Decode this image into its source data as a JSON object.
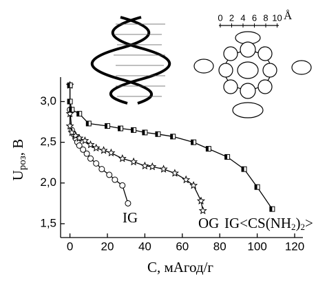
{
  "chart_data": {
    "type": "scatter-line",
    "x_label": "C, мАгод/г",
    "y_label": [
      "U",
      "роз",
      ", В"
    ],
    "xlim": [
      -5,
      120
    ],
    "ylim": [
      1.33,
      3.3
    ],
    "xticks": [
      0,
      20,
      40,
      60,
      80,
      100,
      120
    ],
    "yticks": [
      {
        "value": 1.5,
        "label": "1,5"
      },
      {
        "value": 2.0,
        "label": "2,0"
      },
      {
        "value": 2.5,
        "label": "2,5"
      },
      {
        "value": 3.0,
        "label": "3,0"
      }
    ],
    "series": [
      {
        "name": "IG",
        "marker": "circle",
        "color": "#000000",
        "x": [
          0,
          1,
          2,
          3,
          4,
          5,
          7,
          9,
          11,
          14,
          17,
          21,
          24,
          28,
          31
        ],
        "values": [
          2.9,
          2.65,
          2.6,
          2.55,
          2.5,
          2.46,
          2.41,
          2.36,
          2.3,
          2.24,
          2.17,
          2.1,
          2.04,
          1.97,
          1.75
        ]
      },
      {
        "name": "OG",
        "marker": "star",
        "color": "#000000",
        "x": [
          0,
          0,
          0,
          1,
          3,
          5,
          8,
          11,
          14,
          18,
          22,
          28,
          34,
          40,
          44,
          50,
          56,
          62,
          66,
          70,
          71
        ],
        "values": [
          3.2,
          2.85,
          2.7,
          2.62,
          2.58,
          2.55,
          2.52,
          2.47,
          2.43,
          2.4,
          2.37,
          2.3,
          2.26,
          2.21,
          2.2,
          2.17,
          2.12,
          2.04,
          1.97,
          1.78,
          1.66
        ]
      },
      {
        "name": "IG<CS(NH2)2>",
        "marker": "square",
        "color": "#000000",
        "x": [
          0,
          0,
          1,
          5,
          10,
          20,
          27,
          34,
          40,
          47,
          55,
          66,
          74,
          84,
          93,
          100,
          108
        ],
        "values": [
          3.2,
          3.0,
          2.9,
          2.85,
          2.73,
          2.7,
          2.67,
          2.65,
          2.62,
          2.6,
          2.57,
          2.5,
          2.42,
          2.32,
          2.17,
          1.95,
          1.68
        ]
      }
    ],
    "inset_scale": {
      "labels": [
        "0",
        "2",
        "4",
        "6",
        "8",
        "10"
      ],
      "unit": "Å"
    }
  }
}
